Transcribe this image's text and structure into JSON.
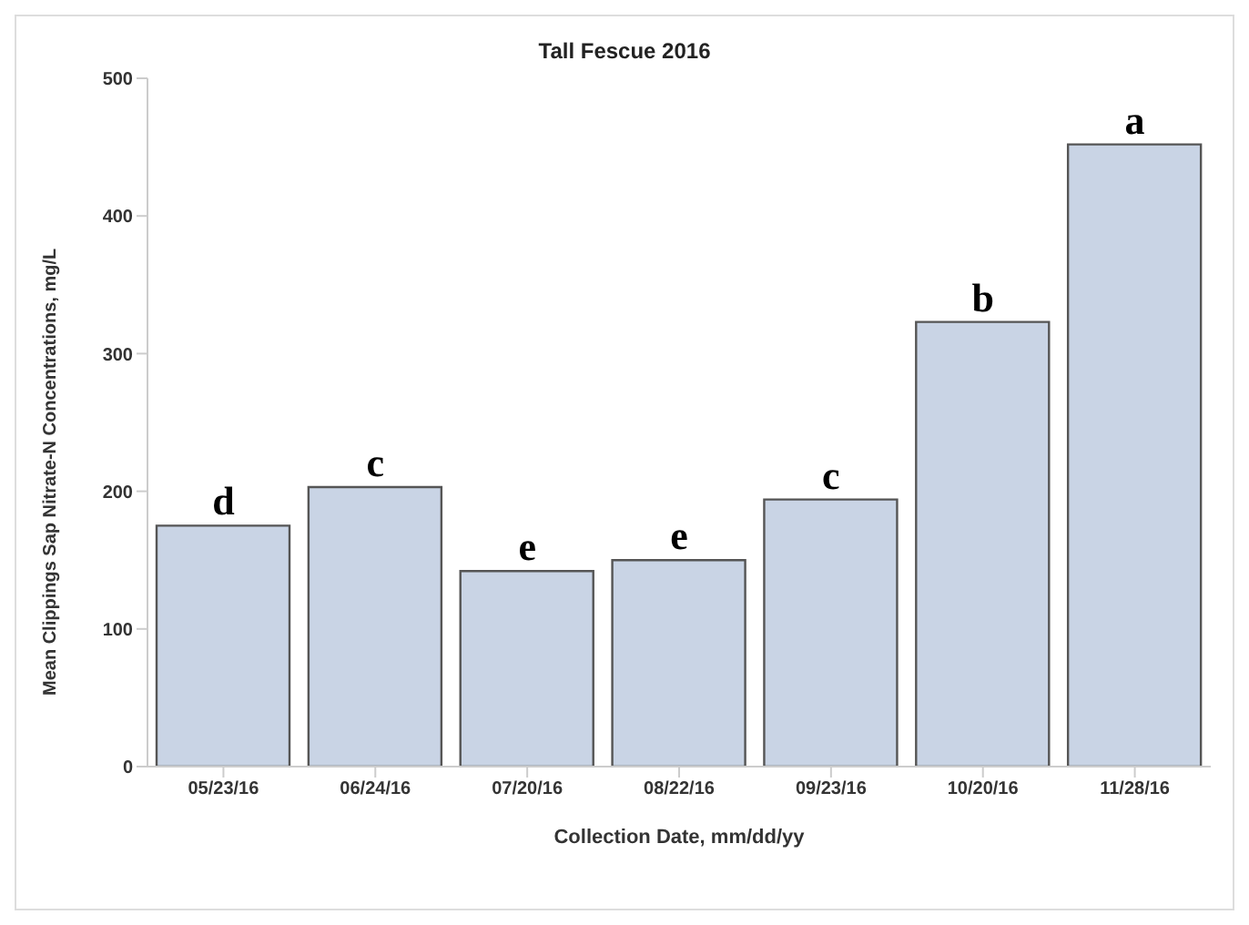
{
  "chart_data": {
    "type": "bar",
    "title": "Tall Fescue 2016",
    "xlabel": "Collection Date, mm/dd/yy",
    "ylabel": "Mean Clippings Sap Nitrate-N Concentrations, mg/L",
    "categories": [
      "05/23/16",
      "06/24/16",
      "07/20/16",
      "08/22/16",
      "09/23/16",
      "10/20/16",
      "11/28/16"
    ],
    "values": [
      175,
      203,
      142,
      150,
      194,
      323,
      452
    ],
    "color": "#c9d4e5",
    "ylim": [
      0,
      500
    ],
    "yticks": [
      0,
      100,
      200,
      300,
      400,
      500
    ],
    "grid": false,
    "legend": false,
    "annotations": [
      {
        "text": "d",
        "x": "05/23/16",
        "y": 175
      },
      {
        "text": "c",
        "x": "06/24/16",
        "y": 203
      },
      {
        "text": "e",
        "x": "07/20/16",
        "y": 142
      },
      {
        "text": "e",
        "x": "08/22/16",
        "y": 150
      },
      {
        "text": "c",
        "x": "09/23/16",
        "y": 194
      },
      {
        "text": "b",
        "x": "10/20/16",
        "y": 323
      },
      {
        "text": "a",
        "x": "11/28/16",
        "y": 452
      }
    ]
  }
}
